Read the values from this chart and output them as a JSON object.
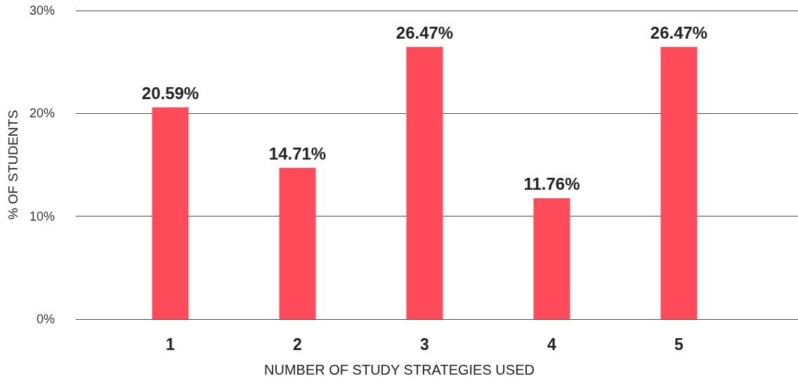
{
  "chart_data": {
    "type": "bar",
    "xlabel": "NUMBER OF STUDY STRATEGIES USED",
    "ylabel": "% OF STUDENTS",
    "categories": [
      "1",
      "2",
      "3",
      "4",
      "5"
    ],
    "values": [
      20.59,
      14.71,
      26.47,
      11.76,
      26.47
    ],
    "value_labels": [
      "20.59%",
      "14.71%",
      "26.47%",
      "11.76%",
      "26.47%"
    ],
    "color": "#ff4a5a",
    "ylim": [
      0,
      30
    ],
    "yticks": [
      {
        "value": 0,
        "label": "0%"
      },
      {
        "value": 10,
        "label": "10%"
      },
      {
        "value": 20,
        "label": "20%"
      },
      {
        "value": 30,
        "label": "30%"
      }
    ],
    "grid": "y"
  }
}
